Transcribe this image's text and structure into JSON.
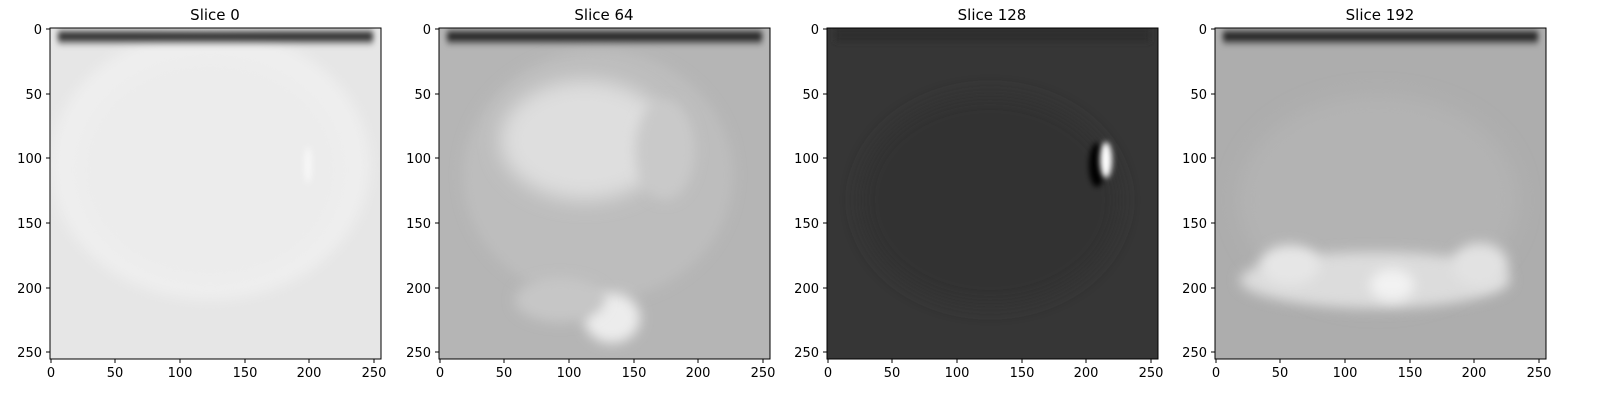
{
  "figure": {
    "panels": [
      {
        "title": "Slice 0",
        "background": "#e6e6e6",
        "x_ticks": [
          "0",
          "50",
          "100",
          "150",
          "200",
          "250"
        ],
        "y_ticks": [
          "0",
          "50",
          "100",
          "150",
          "200",
          "250"
        ]
      },
      {
        "title": "Slice 64",
        "background": "#b5b5b5",
        "x_ticks": [
          "0",
          "50",
          "100",
          "150",
          "200",
          "250"
        ],
        "y_ticks": [
          "0",
          "50",
          "100",
          "150",
          "200",
          "250"
        ]
      },
      {
        "title": "Slice 128",
        "background": "#363636",
        "x_ticks": [
          "0",
          "50",
          "100",
          "150",
          "200",
          "250"
        ],
        "y_ticks": [
          "0",
          "50",
          "100",
          "150",
          "200",
          "250"
        ]
      },
      {
        "title": "Slice 192",
        "background": "#adadad",
        "x_ticks": [
          "0",
          "50",
          "100",
          "150",
          "200",
          "250"
        ],
        "y_ticks": [
          "0",
          "50",
          "100",
          "150",
          "200",
          "250"
        ]
      }
    ],
    "colormap": "gray",
    "image_extent": [
      0,
      256
    ]
  }
}
